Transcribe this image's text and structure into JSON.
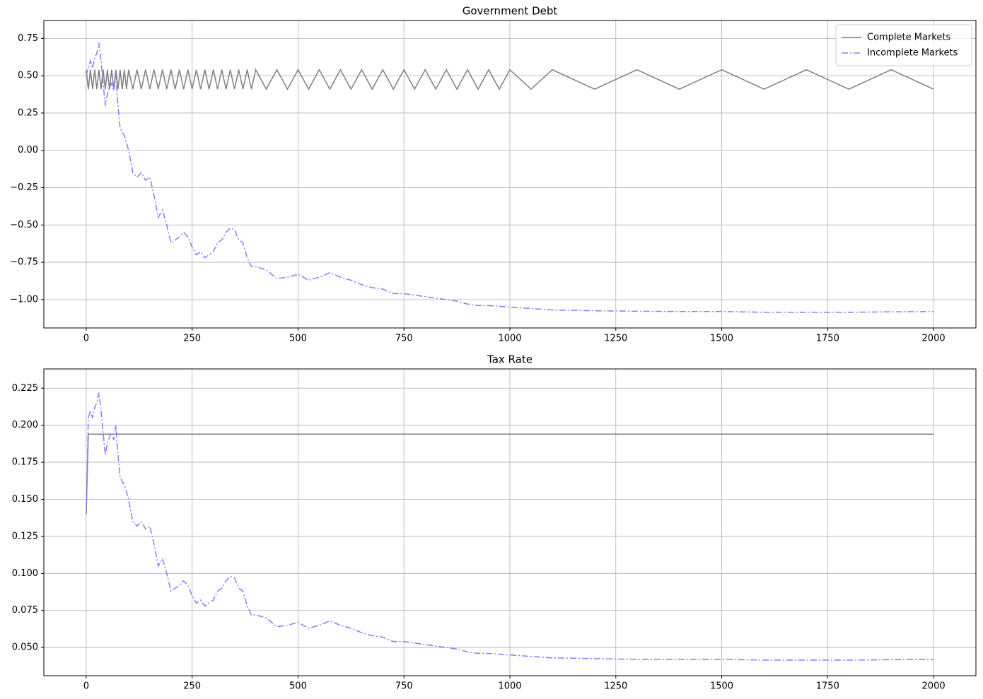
{
  "chart_data": [
    {
      "type": "line",
      "title": "Government Debt",
      "legend": "upper right",
      "grid": true,
      "xlim": [
        -100,
        2100
      ],
      "ylim": [
        -1.19,
        0.87
      ],
      "xticks": [
        0,
        250,
        500,
        750,
        1000,
        1250,
        1500,
        1750,
        2000
      ],
      "yticks": [
        {
          "value": -1,
          "label": "−1.00"
        },
        {
          "value": -0.75,
          "label": "−0.75"
        },
        {
          "value": -0.5,
          "label": "−0.50"
        },
        {
          "value": -0.25,
          "label": "−0.25"
        },
        {
          "value": 0,
          "label": "0.00"
        },
        {
          "value": 0.25,
          "label": "0.25"
        },
        {
          "value": 0.5,
          "label": "0.50"
        },
        {
          "value": 0.75,
          "label": "0.75"
        }
      ],
      "x": [
        0,
        5,
        10,
        15,
        20,
        25,
        30,
        35,
        40,
        45,
        50,
        55,
        60,
        65,
        70,
        75,
        80,
        85,
        90,
        95,
        100,
        110,
        120,
        130,
        140,
        150,
        160,
        170,
        180,
        190,
        200,
        210,
        220,
        230,
        240,
        250,
        260,
        270,
        280,
        290,
        300,
        310,
        320,
        330,
        340,
        350,
        360,
        370,
        380,
        390,
        400,
        425,
        450,
        475,
        500,
        525,
        550,
        575,
        600,
        625,
        650,
        675,
        700,
        725,
        750,
        775,
        800,
        825,
        850,
        875,
        900,
        925,
        950,
        975,
        1000,
        1050,
        1100,
        1200,
        1300,
        1400,
        1500,
        1600,
        1700,
        1800,
        1900,
        2000
      ],
      "series": [
        {
          "name": "Complete Markets",
          "color": "#7f7f7f",
          "dash": "solid",
          "values": [
            0.54,
            0.41,
            0.54,
            0.41,
            0.54,
            0.41,
            0.54,
            0.41,
            0.54,
            0.41,
            0.54,
            0.41,
            0.54,
            0.41,
            0.54,
            0.41,
            0.54,
            0.41,
            0.54,
            0.41,
            0.54,
            0.41,
            0.54,
            0.41,
            0.54,
            0.41,
            0.54,
            0.41,
            0.54,
            0.41,
            0.54,
            0.41,
            0.54,
            0.41,
            0.54,
            0.41,
            0.54,
            0.41,
            0.54,
            0.41,
            0.54,
            0.41,
            0.54,
            0.41,
            0.54,
            0.41,
            0.54,
            0.41,
            0.54,
            0.41,
            0.54,
            0.41,
            0.54,
            0.41,
            0.54,
            0.41,
            0.54,
            0.41,
            0.54,
            0.41,
            0.54,
            0.41,
            0.54,
            0.41,
            0.54,
            0.41,
            0.54,
            0.41,
            0.54,
            0.41,
            0.54,
            0.41,
            0.54,
            0.41,
            0.54,
            0.41,
            0.54,
            0.41,
            0.54,
            0.41,
            0.54,
            0.41,
            0.54,
            0.41,
            0.54,
            0.41
          ]
        },
        {
          "name": "Incomplete Markets",
          "color": "#8080ff",
          "dash": "dashdot",
          "values": [
            0.5,
            0.55,
            0.6,
            0.55,
            0.62,
            0.65,
            0.72,
            0.6,
            0.45,
            0.3,
            0.38,
            0.42,
            0.45,
            0.4,
            0.5,
            0.3,
            0.15,
            0.12,
            0.1,
            0.05,
            0.0,
            -0.15,
            -0.18,
            -0.15,
            -0.2,
            -0.18,
            -0.3,
            -0.45,
            -0.4,
            -0.5,
            -0.62,
            -0.6,
            -0.58,
            -0.55,
            -0.58,
            -0.65,
            -0.7,
            -0.68,
            -0.72,
            -0.7,
            -0.68,
            -0.62,
            -0.6,
            -0.55,
            -0.52,
            -0.53,
            -0.6,
            -0.62,
            -0.72,
            -0.78,
            -0.78,
            -0.8,
            -0.86,
            -0.85,
            -0.83,
            -0.87,
            -0.85,
            -0.82,
            -0.85,
            -0.87,
            -0.9,
            -0.92,
            -0.93,
            -0.96,
            -0.96,
            -0.97,
            -0.98,
            -0.99,
            -1.0,
            -1.01,
            -1.03,
            -1.04,
            -1.04,
            -1.045,
            -1.05,
            -1.06,
            -1.07,
            -1.075,
            -1.078,
            -1.08,
            -1.08,
            -1.085,
            -1.085,
            -1.085,
            -1.082,
            -1.08
          ]
        }
      ]
    },
    {
      "type": "line",
      "title": "Tax Rate",
      "grid": true,
      "xlim": [
        -100,
        2100
      ],
      "ylim": [
        0.031,
        0.238
      ],
      "xticks": [
        0,
        250,
        500,
        750,
        1000,
        1250,
        1500,
        1750,
        2000
      ],
      "yticks": [
        {
          "value": 0.05,
          "label": "0.050"
        },
        0.075,
        {
          "value": 0.1,
          "label": "0.100"
        },
        0.125,
        {
          "value": 0.15,
          "label": "0.150"
        },
        0.175,
        {
          "value": 0.2,
          "label": "0.200"
        },
        0.225
      ],
      "x": [
        0,
        5,
        10,
        15,
        20,
        25,
        30,
        35,
        40,
        45,
        50,
        55,
        60,
        65,
        70,
        75,
        80,
        85,
        90,
        95,
        100,
        110,
        120,
        130,
        140,
        150,
        160,
        170,
        180,
        190,
        200,
        210,
        220,
        230,
        240,
        250,
        260,
        270,
        280,
        290,
        300,
        310,
        320,
        330,
        340,
        350,
        360,
        370,
        380,
        390,
        400,
        425,
        450,
        475,
        500,
        525,
        550,
        575,
        600,
        625,
        650,
        675,
        700,
        725,
        750,
        775,
        800,
        825,
        850,
        875,
        900,
        925,
        950,
        975,
        1000,
        1050,
        1100,
        1200,
        1300,
        1400,
        1500,
        1600,
        1700,
        1800,
        1900,
        2000
      ],
      "series": [
        {
          "name": "Complete Markets",
          "color": "#7f7f7f",
          "dash": "solid",
          "values": [
            0.14,
            0.194,
            0.194,
            0.194,
            0.194,
            0.194,
            0.194,
            0.194,
            0.194,
            0.194,
            0.194,
            0.194,
            0.194,
            0.194,
            0.194,
            0.194,
            0.194,
            0.194,
            0.194,
            0.194,
            0.194,
            0.194,
            0.194,
            0.194,
            0.194,
            0.194,
            0.194,
            0.194,
            0.194,
            0.194,
            0.194,
            0.194,
            0.194,
            0.194,
            0.194,
            0.194,
            0.194,
            0.194,
            0.194,
            0.194,
            0.194,
            0.194,
            0.194,
            0.194,
            0.194,
            0.194,
            0.194,
            0.194,
            0.194,
            0.194,
            0.194,
            0.194,
            0.194,
            0.194,
            0.194,
            0.194,
            0.194,
            0.194,
            0.194,
            0.194,
            0.194,
            0.194,
            0.194,
            0.194,
            0.194,
            0.194,
            0.194,
            0.194,
            0.194,
            0.194,
            0.194,
            0.194,
            0.194,
            0.194,
            0.194,
            0.194,
            0.194,
            0.194,
            0.194,
            0.194,
            0.194,
            0.194,
            0.194,
            0.194,
            0.194,
            0.194
          ]
        },
        {
          "name": "Incomplete Markets",
          "color": "#8080ff",
          "dash": "dashdot",
          "values": [
            0.14,
            0.205,
            0.21,
            0.205,
            0.212,
            0.215,
            0.222,
            0.21,
            0.195,
            0.18,
            0.188,
            0.192,
            0.195,
            0.19,
            0.2,
            0.18,
            0.165,
            0.162,
            0.16,
            0.155,
            0.15,
            0.135,
            0.132,
            0.135,
            0.13,
            0.132,
            0.12,
            0.105,
            0.11,
            0.1,
            0.088,
            0.09,
            0.092,
            0.095,
            0.092,
            0.085,
            0.08,
            0.082,
            0.078,
            0.08,
            0.082,
            0.088,
            0.09,
            0.095,
            0.098,
            0.097,
            0.09,
            0.088,
            0.078,
            0.072,
            0.072,
            0.07,
            0.064,
            0.065,
            0.067,
            0.063,
            0.065,
            0.068,
            0.065,
            0.063,
            0.06,
            0.058,
            0.057,
            0.054,
            0.054,
            0.053,
            0.052,
            0.051,
            0.05,
            0.049,
            0.047,
            0.046,
            0.046,
            0.0455,
            0.045,
            0.044,
            0.043,
            0.0425,
            0.042,
            0.042,
            0.042,
            0.0415,
            0.0415,
            0.0415,
            0.0418,
            0.042
          ]
        }
      ]
    }
  ]
}
